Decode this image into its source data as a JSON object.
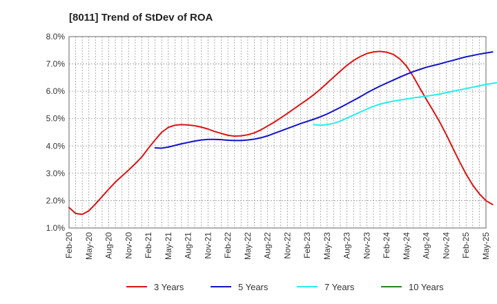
{
  "chart_data": {
    "type": "line",
    "title": "[8011]  Trend of StDev of ROA",
    "xlabel": "",
    "ylabel": "",
    "ylim": [
      1.0,
      8.0
    ],
    "y_ticks": [
      "1.0%",
      "2.0%",
      "3.0%",
      "4.0%",
      "5.0%",
      "6.0%",
      "7.0%",
      "8.0%"
    ],
    "x_ticks": [
      "Feb-20",
      "May-20",
      "Aug-20",
      "Nov-20",
      "Feb-21",
      "May-21",
      "Aug-21",
      "Nov-21",
      "Feb-22",
      "May-22",
      "Aug-22",
      "Nov-22",
      "Feb-23",
      "May-23",
      "Aug-23",
      "Nov-23",
      "Feb-24",
      "May-24",
      "Aug-24",
      "Nov-24",
      "Feb-25",
      "May-25"
    ],
    "grid": true,
    "legend_position": "bottom",
    "series": [
      {
        "name": "3 Years",
        "color": "#dd1111",
        "start_index": 0,
        "values": [
          1.75,
          1.53,
          1.5,
          1.63,
          1.88,
          2.15,
          2.42,
          2.68,
          2.9,
          3.12,
          3.35,
          3.6,
          3.92,
          4.22,
          4.5,
          4.68,
          4.76,
          4.78,
          4.77,
          4.74,
          4.69,
          4.62,
          4.53,
          4.46,
          4.39,
          4.36,
          4.37,
          4.41,
          4.48,
          4.59,
          4.73,
          4.87,
          5.03,
          5.19,
          5.36,
          5.53,
          5.7,
          5.88,
          6.08,
          6.3,
          6.52,
          6.74,
          6.95,
          7.13,
          7.27,
          7.38,
          7.44,
          7.46,
          7.43,
          7.35,
          7.18,
          6.92,
          6.55,
          6.12,
          5.7,
          5.3,
          4.88,
          4.42,
          3.92,
          3.43,
          2.97,
          2.57,
          2.25,
          2.0,
          1.86
        ]
      },
      {
        "name": "5 Years",
        "color": "#1111cc",
        "start_index": 13,
        "values": [
          3.93,
          3.92,
          3.96,
          4.02,
          4.08,
          4.13,
          4.18,
          4.22,
          4.24,
          4.24,
          4.23,
          4.21,
          4.2,
          4.2,
          4.22,
          4.25,
          4.3,
          4.37,
          4.46,
          4.55,
          4.64,
          4.73,
          4.82,
          4.9,
          4.98,
          5.07,
          5.17,
          5.29,
          5.41,
          5.54,
          5.67,
          5.8,
          5.94,
          6.07,
          6.19,
          6.3,
          6.41,
          6.52,
          6.62,
          6.72,
          6.8,
          6.88,
          6.94,
          7.0,
          7.07,
          7.13,
          7.2,
          7.26,
          7.31,
          7.36,
          7.4,
          7.44
        ]
      },
      {
        "name": "7 Years",
        "color": "#22eeee",
        "start_index": 37,
        "values": [
          4.78,
          4.76,
          4.78,
          4.83,
          4.91,
          5.02,
          5.13,
          5.24,
          5.35,
          5.45,
          5.53,
          5.59,
          5.64,
          5.68,
          5.72,
          5.76,
          5.79,
          5.82,
          5.86,
          5.9,
          5.95,
          6.0,
          6.05,
          6.1,
          6.15,
          6.2,
          6.25,
          6.29,
          6.33
        ]
      },
      {
        "name": "10 Years",
        "color": "#228822",
        "start_index": 0,
        "values": []
      }
    ]
  }
}
